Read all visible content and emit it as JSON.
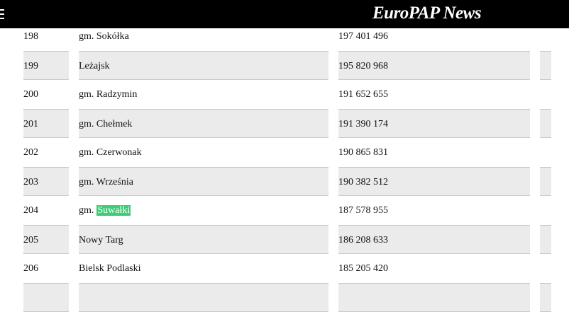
{
  "header": {
    "title": "EuroPAP News"
  },
  "table": {
    "rows": [
      {
        "rank": "198",
        "name": "gm. Sokółka",
        "amount": "197 401 496"
      },
      {
        "rank": "199",
        "name": "Leżajsk",
        "amount": "195 820 968"
      },
      {
        "rank": "200",
        "name": "gm. Radzymin",
        "amount": "191 652 655"
      },
      {
        "rank": "201",
        "name": "gm. Chełmek",
        "amount": "191 390 174"
      },
      {
        "rank": "202",
        "name": "gm. Czerwonak",
        "amount": "190 865 831"
      },
      {
        "rank": "203",
        "name": "gm. Września",
        "amount": "190 382 512"
      },
      {
        "rank": "204",
        "name": "gm.",
        "name_highlight": "Suwałki",
        "amount": "187 578 955"
      },
      {
        "rank": "205",
        "name": "Nowy Targ",
        "amount": "186 208 633"
      },
      {
        "rank": "206",
        "name": "Bielsk Podlaski",
        "amount": "185 205 420"
      }
    ]
  }
}
